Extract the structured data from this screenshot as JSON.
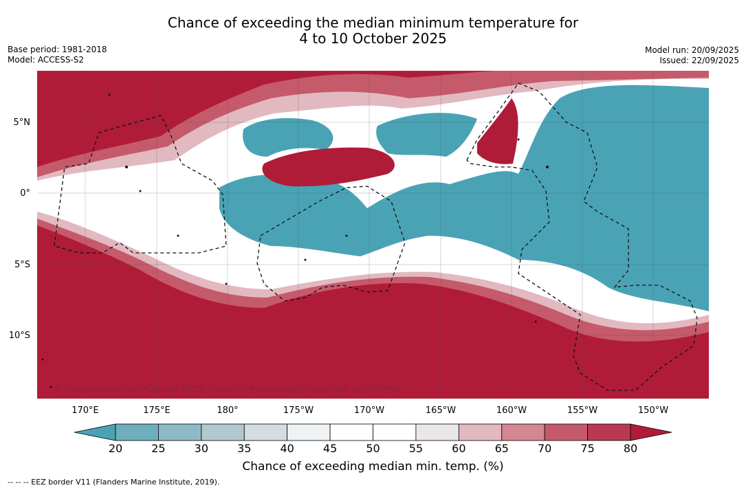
{
  "title": {
    "line1": "Chance of exceeding the median minimum temperature for",
    "line2": "4 to 10 October 2025"
  },
  "meta": {
    "base_period": "Base period: 1981-2018",
    "model": "Model: ACCESS-S2",
    "model_run": "Model run: 20/09/2025",
    "issued": "Issued: 22/09/2025"
  },
  "map": {
    "latitude_labels": [
      "5°N",
      "0°",
      "5°S",
      "10°S"
    ],
    "longitude_labels": [
      "170°E",
      "175°E",
      "180°",
      "175°W",
      "170°W",
      "165°W",
      "160°W",
      "155°W",
      "150°W"
    ],
    "copyright": "© Commonwealth of Australia 2025, Bureau of Meteorology, supported by COSPPac",
    "eez_note": "--  --  -- EEZ border V11 (Flanders Marine Institute, 2019)."
  },
  "colorbar": {
    "label": "Chance of exceeding median min. temp. (%)",
    "ticks": [
      "20",
      "25",
      "30",
      "35",
      "40",
      "45",
      "50",
      "55",
      "60",
      "65",
      "70",
      "75",
      "80"
    ],
    "colors": [
      "#4aa3b5",
      "#6eaebd",
      "#8dbac6",
      "#b0c8ce",
      "#d3dddf",
      "#eef2f4",
      "#ffffff",
      "#ffffff",
      "#ebe6e7",
      "#e2b9c0",
      "#d48691",
      "#c55a6b",
      "#b93a50",
      "#b01c38"
    ]
  }
}
